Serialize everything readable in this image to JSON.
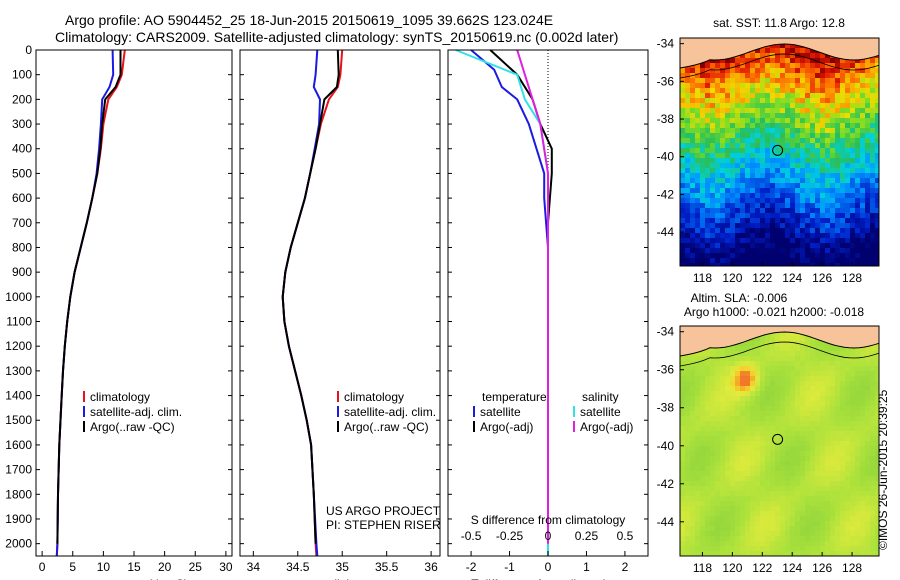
{
  "header": {
    "line1": "Argo profile: AO 5904452_25 18-Jun-2015 20150619_1095 39.662S 123.024E",
    "line2": "Climatology: CARS2009. Satellite-adjusted climatology: synTS_20150619.nc (0.002d later)"
  },
  "colors": {
    "climatology": "#e8121b",
    "satellite": "#1a1ae0",
    "argo": "#000000",
    "satellite_salinity": "#33e0e8",
    "argo_salinity": "#e020e0"
  },
  "chart_data": [
    {
      "id": "temperature",
      "type": "line",
      "xlabel": "temperature (deg C)",
      "xlim": [
        -1,
        31
      ],
      "xticks": [
        0,
        5,
        10,
        15,
        20,
        25,
        30
      ],
      "ylim": [
        0,
        2050
      ],
      "yticks": [
        0,
        100,
        200,
        300,
        400,
        500,
        600,
        700,
        800,
        900,
        1000,
        1100,
        1200,
        1300,
        1400,
        1500,
        1600,
        1700,
        1800,
        1900,
        2000
      ],
      "y_reversed": true,
      "grid": false,
      "legend": [
        "climatology",
        "satellite-adj. clim.",
        "Argo(..raw -QC)"
      ],
      "legend_position": "lower-center",
      "series": [
        {
          "name": "climatology",
          "x": [
            13.5,
            13.0,
            12.2,
            10.8,
            10.0,
            9.6,
            9.0,
            8.2,
            7.3,
            6.3,
            5.3,
            4.6,
            4.1,
            3.7,
            3.4,
            3.2,
            3.0,
            2.8,
            2.6,
            2.5,
            2.4
          ],
          "y": [
            0,
            100,
            150,
            200,
            300,
            400,
            500,
            600,
            700,
            800,
            900,
            1000,
            1100,
            1200,
            1300,
            1400,
            1500,
            1600,
            1800,
            2000,
            2050
          ]
        },
        {
          "name": "satellite-adj. clim.",
          "x": [
            11.5,
            11.6,
            11.0,
            9.8,
            9.6,
            9.3,
            8.9,
            8.2,
            7.3,
            6.3,
            5.3,
            4.6,
            4.1,
            3.7,
            3.4,
            3.2,
            3.0,
            2.8,
            2.6,
            2.5,
            2.4
          ],
          "y": [
            0,
            100,
            150,
            200,
            300,
            400,
            500,
            600,
            700,
            800,
            900,
            1000,
            1100,
            1200,
            1300,
            1400,
            1500,
            1600,
            1800,
            2000,
            2050
          ]
        },
        {
          "name": "Argo(..raw -QC)",
          "x": [
            12.8,
            12.8,
            12.0,
            10.3,
            9.8,
            9.5,
            9.0,
            8.2,
            7.3,
            6.3,
            5.3,
            4.6,
            4.1,
            3.7,
            3.4,
            3.2,
            3.0,
            2.8,
            2.6,
            2.5
          ],
          "y": [
            0,
            100,
            150,
            200,
            300,
            400,
            500,
            600,
            700,
            800,
            900,
            1000,
            1100,
            1200,
            1300,
            1400,
            1500,
            1600,
            1800,
            2000
          ]
        }
      ]
    },
    {
      "id": "salinity",
      "type": "line",
      "xlabel": "salinity",
      "xlim": [
        33.85,
        36.1
      ],
      "xticks": [
        34,
        34.5,
        35,
        35.5,
        36
      ],
      "ylim": [
        0,
        2050
      ],
      "y_reversed": true,
      "grid": false,
      "legend": [
        "climatology",
        "satellite-adj. clim.",
        "Argo(..raw -QC)"
      ],
      "legend_position": "lower-center",
      "annotations": [
        "US ARGO PROJECT",
        "PI: STEPHEN RISER"
      ],
      "series": [
        {
          "name": "climatology",
          "x": [
            35.0,
            34.98,
            34.95,
            34.85,
            34.76,
            34.7,
            34.64,
            34.58,
            34.5,
            34.42,
            34.36,
            34.33,
            34.35,
            34.4,
            34.47,
            34.54,
            34.6,
            34.65,
            34.68,
            34.7,
            34.71
          ],
          "y": [
            0,
            100,
            150,
            200,
            300,
            400,
            500,
            600,
            700,
            800,
            900,
            1000,
            1100,
            1200,
            1300,
            1400,
            1500,
            1600,
            1800,
            2000,
            2050
          ]
        },
        {
          "name": "satellite-adj. clim.",
          "x": [
            34.72,
            34.7,
            34.68,
            34.75,
            34.74,
            34.69,
            34.64,
            34.58,
            34.5,
            34.42,
            34.36,
            34.33,
            34.35,
            34.4,
            34.47,
            34.54,
            34.6,
            34.65,
            34.68,
            34.71,
            34.72
          ],
          "y": [
            0,
            100,
            150,
            200,
            300,
            400,
            500,
            600,
            700,
            800,
            900,
            1000,
            1100,
            1200,
            1300,
            1400,
            1500,
            1600,
            1800,
            2000,
            2050
          ]
        },
        {
          "name": "Argo(..raw -QC)",
          "x": [
            34.95,
            34.96,
            34.94,
            34.8,
            34.75,
            34.7,
            34.64,
            34.58,
            34.5,
            34.42,
            34.36,
            34.33,
            34.35,
            34.4,
            34.47,
            34.54,
            34.6,
            34.65,
            34.68,
            34.7
          ],
          "y": [
            0,
            100,
            150,
            200,
            300,
            400,
            500,
            600,
            700,
            800,
            900,
            1000,
            1100,
            1200,
            1300,
            1400,
            1500,
            1600,
            1800,
            2000
          ]
        }
      ]
    },
    {
      "id": "difference",
      "type": "line",
      "xlabel": "T difference from climatology",
      "top_axis_label": "S difference from climatology",
      "xlim": [
        -2.6,
        2.6
      ],
      "xticks": [
        -2,
        -1,
        0,
        1,
        2
      ],
      "top_xticks": [
        "-0.5",
        "-0.25",
        "0",
        "0.25",
        "0.5"
      ],
      "ylim": [
        0,
        2050
      ],
      "y_reversed": true,
      "grid": false,
      "legend_temperature_title": "temperature",
      "legend_salinity_title": "salinity",
      "legend": [
        "satellite",
        "Argo(-adj)",
        "satellite",
        "Argo(-adj)"
      ],
      "series": [
        {
          "name": "satellite",
          "variable": "temperature",
          "x": [
            -2.0,
            -1.4,
            -1.2,
            -0.8,
            -0.5,
            -0.3,
            -0.1,
            -0.1,
            -0.05,
            0.0,
            0.0,
            0.0,
            0.0,
            0.0
          ],
          "y": [
            0,
            80,
            150,
            200,
            300,
            400,
            500,
            600,
            700,
            800,
            1000,
            1500,
            2000,
            2050
          ]
        },
        {
          "name": "Argo(-adj)",
          "variable": "temperature",
          "x": [
            -1.5,
            -0.8,
            -0.6,
            -0.4,
            -0.2,
            0.1,
            0.1,
            0.05,
            0.0,
            0.0,
            0.0,
            0.0
          ],
          "y": [
            0,
            100,
            150,
            200,
            300,
            400,
            500,
            600,
            700,
            1000,
            1500,
            2000
          ]
        },
        {
          "name": "satellite",
          "variable": "salinity",
          "x": [
            -0.6,
            -0.2,
            -0.15,
            -0.05,
            0.0,
            0.0,
            0.0,
            0.0,
            0.0
          ],
          "y": [
            0,
            100,
            200,
            300,
            500,
            700,
            1000,
            1500,
            2050
          ]
        },
        {
          "name": "Argo(-adj)",
          "variable": "salinity",
          "x": [
            -0.2,
            -0.15,
            -0.1,
            -0.05,
            0.0,
            0.0,
            0.0
          ],
          "y": [
            0,
            100,
            200,
            300,
            500,
            1000,
            2000
          ]
        }
      ]
    },
    {
      "id": "sst_map",
      "type": "heatmap",
      "title": "sat. SST: 11.8  Argo: 12.8",
      "xticks": [
        118,
        120,
        122,
        124,
        126,
        128
      ],
      "yticks": [
        -34,
        -36,
        -38,
        -40,
        -42,
        -44
      ],
      "xlim": [
        116.5,
        129.8
      ],
      "ylim": [
        -45.8,
        -33.7
      ],
      "argo_position": {
        "lon": 123.024,
        "lat": -39.662
      }
    },
    {
      "id": "sla_map",
      "type": "heatmap",
      "title_line1": "Altim. SLA: -0.006",
      "title_line2": "Argo h1000: -0.021 h2000: -0.018",
      "xticks": [
        118,
        120,
        122,
        124,
        126,
        128
      ],
      "yticks": [
        -34,
        -36,
        -38,
        -40,
        -42,
        -44
      ],
      "xlim": [
        116.5,
        129.8
      ],
      "ylim": [
        -45.8,
        -33.7
      ],
      "argo_position": {
        "lon": 123.024,
        "lat": -39.662
      }
    }
  ],
  "footer": {
    "stamp": "©IMOS 26-Jun-2015 20:39:25"
  }
}
